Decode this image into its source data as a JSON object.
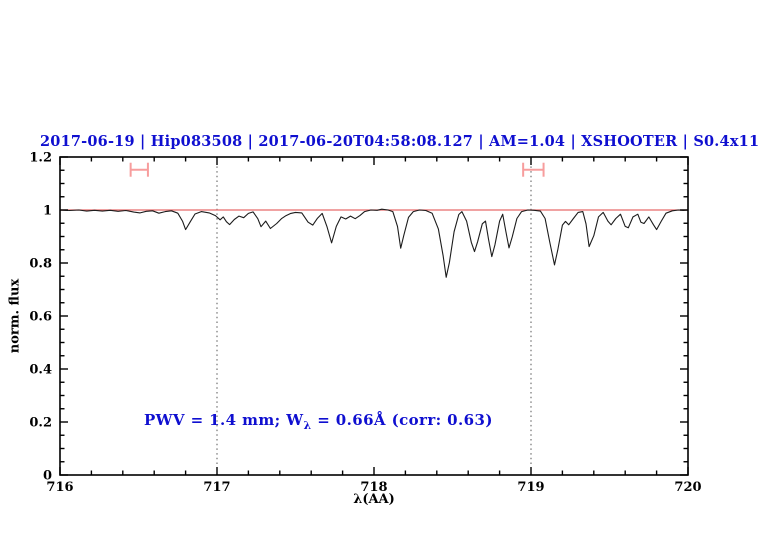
{
  "title": {
    "text": "2017-06-19 | Hip083508 | 2017-06-20T04:58:08.127 | AM=1.04 | XSHOOTER | S0.4x11",
    "color": "#0f0fd0"
  },
  "annotation": {
    "prefix": "PWV = 1.4 mm; W",
    "sub": "λ",
    "suffix": " = 0.66Å (corr: 0.63)",
    "color": "#0f0fd0"
  },
  "chart_data": {
    "type": "line",
    "title": "2017-06-19 | Hip083508 | 2017-06-20T04:58:08.127 | AM=1.04 | XSHOOTER | S0.4x11",
    "xlabel": "λ(AA)",
    "ylabel": "norm. flux",
    "xlim": [
      716,
      720
    ],
    "ylim": [
      0,
      1.2
    ],
    "grid": "off",
    "legend": "none",
    "x_tick_values": [
      716,
      717,
      718,
      719,
      720
    ],
    "x_tick_labels": [
      "716",
      "717",
      "718",
      "719",
      "720"
    ],
    "x_minor_step": 0.2,
    "y_tick_values": [
      0,
      0.2,
      0.4,
      0.6,
      0.8,
      1,
      1.2
    ],
    "y_tick_labels": [
      "0",
      "0.2",
      "0.4",
      "0.6",
      "0.8",
      "1",
      "1.2"
    ],
    "y_minor_step": 0.05,
    "vlines": [
      {
        "x": 717,
        "style": "dotted",
        "color": "#555555"
      },
      {
        "x": 719,
        "style": "dotted",
        "color": "#555555"
      }
    ],
    "hlines": [
      {
        "y": 1.0,
        "color": "#e66a6a",
        "name": "continuum"
      }
    ],
    "range_markers": [
      {
        "x_min": 716.45,
        "x_max": 716.56,
        "y": 1.152,
        "color": "#f79d9d"
      },
      {
        "x_min": 718.95,
        "x_max": 719.08,
        "y": 1.152,
        "color": "#f79d9d"
      }
    ],
    "series": [
      {
        "name": "normalized telluric spectrum",
        "color": "#1c1c1c",
        "points": [
          [
            716.0,
            1.0
          ],
          [
            716.06,
            0.998
          ],
          [
            716.12,
            1.0
          ],
          [
            716.17,
            0.996
          ],
          [
            716.22,
            0.999
          ],
          [
            716.27,
            0.996
          ],
          [
            716.32,
            0.999
          ],
          [
            716.37,
            0.995
          ],
          [
            716.42,
            0.998
          ],
          [
            716.47,
            0.992
          ],
          [
            716.51,
            0.989
          ],
          [
            716.55,
            0.995
          ],
          [
            716.59,
            0.997
          ],
          [
            716.63,
            0.988
          ],
          [
            716.67,
            0.994
          ],
          [
            716.71,
            0.997
          ],
          [
            716.75,
            0.988
          ],
          [
            716.78,
            0.958
          ],
          [
            716.8,
            0.926
          ],
          [
            716.83,
            0.956
          ],
          [
            716.86,
            0.985
          ],
          [
            716.9,
            0.994
          ],
          [
            716.95,
            0.989
          ],
          [
            716.99,
            0.979
          ],
          [
            717.02,
            0.963
          ],
          [
            717.04,
            0.974
          ],
          [
            717.06,
            0.956
          ],
          [
            717.08,
            0.945
          ],
          [
            717.11,
            0.964
          ],
          [
            717.14,
            0.977
          ],
          [
            717.17,
            0.971
          ],
          [
            717.2,
            0.987
          ],
          [
            717.23,
            0.993
          ],
          [
            717.26,
            0.967
          ],
          [
            717.28,
            0.937
          ],
          [
            717.31,
            0.958
          ],
          [
            717.34,
            0.93
          ],
          [
            717.38,
            0.949
          ],
          [
            717.41,
            0.967
          ],
          [
            717.44,
            0.979
          ],
          [
            717.47,
            0.987
          ],
          [
            717.5,
            0.991
          ],
          [
            717.54,
            0.989
          ],
          [
            717.58,
            0.954
          ],
          [
            717.61,
            0.943
          ],
          [
            717.64,
            0.969
          ],
          [
            717.67,
            0.987
          ],
          [
            717.7,
            0.938
          ],
          [
            717.73,
            0.876
          ],
          [
            717.76,
            0.938
          ],
          [
            717.79,
            0.974
          ],
          [
            717.82,
            0.966
          ],
          [
            717.85,
            0.977
          ],
          [
            717.88,
            0.967
          ],
          [
            717.91,
            0.979
          ],
          [
            717.94,
            0.994
          ],
          [
            717.98,
            1.0
          ],
          [
            718.02,
            0.999
          ],
          [
            718.05,
            1.003
          ],
          [
            718.09,
            1.0
          ],
          [
            718.12,
            0.994
          ],
          [
            718.15,
            0.938
          ],
          [
            718.17,
            0.856
          ],
          [
            718.19,
            0.904
          ],
          [
            718.22,
            0.972
          ],
          [
            718.25,
            0.994
          ],
          [
            718.29,
            1.0
          ],
          [
            718.33,
            0.998
          ],
          [
            718.37,
            0.988
          ],
          [
            718.41,
            0.928
          ],
          [
            718.44,
            0.828
          ],
          [
            718.46,
            0.746
          ],
          [
            718.48,
            0.802
          ],
          [
            718.51,
            0.918
          ],
          [
            718.54,
            0.983
          ],
          [
            718.56,
            0.994
          ],
          [
            718.59,
            0.958
          ],
          [
            718.62,
            0.878
          ],
          [
            718.64,
            0.843
          ],
          [
            718.66,
            0.88
          ],
          [
            718.69,
            0.948
          ],
          [
            718.71,
            0.958
          ],
          [
            718.73,
            0.888
          ],
          [
            718.75,
            0.824
          ],
          [
            718.77,
            0.868
          ],
          [
            718.8,
            0.958
          ],
          [
            718.82,
            0.984
          ],
          [
            718.84,
            0.918
          ],
          [
            718.86,
            0.857
          ],
          [
            718.88,
            0.898
          ],
          [
            718.91,
            0.968
          ],
          [
            718.94,
            0.994
          ],
          [
            718.98,
            1.0
          ],
          [
            719.02,
            0.999
          ],
          [
            719.06,
            0.996
          ],
          [
            719.09,
            0.968
          ],
          [
            719.12,
            0.878
          ],
          [
            719.15,
            0.793
          ],
          [
            719.17,
            0.848
          ],
          [
            719.2,
            0.943
          ],
          [
            719.22,
            0.957
          ],
          [
            719.24,
            0.944
          ],
          [
            719.27,
            0.968
          ],
          [
            719.3,
            0.991
          ],
          [
            719.33,
            0.994
          ],
          [
            719.35,
            0.948
          ],
          [
            719.37,
            0.862
          ],
          [
            719.4,
            0.903
          ],
          [
            719.43,
            0.974
          ],
          [
            719.46,
            0.991
          ],
          [
            719.49,
            0.958
          ],
          [
            719.51,
            0.944
          ],
          [
            719.54,
            0.968
          ],
          [
            719.57,
            0.984
          ],
          [
            719.6,
            0.938
          ],
          [
            719.62,
            0.933
          ],
          [
            719.65,
            0.974
          ],
          [
            719.68,
            0.984
          ],
          [
            719.7,
            0.954
          ],
          [
            719.72,
            0.949
          ],
          [
            719.75,
            0.974
          ],
          [
            719.78,
            0.944
          ],
          [
            719.8,
            0.926
          ],
          [
            719.83,
            0.958
          ],
          [
            719.86,
            0.988
          ],
          [
            719.9,
            0.997
          ],
          [
            719.94,
            1.0
          ],
          [
            719.97,
            0.999
          ],
          [
            720.0,
            1.0
          ]
        ]
      }
    ]
  }
}
